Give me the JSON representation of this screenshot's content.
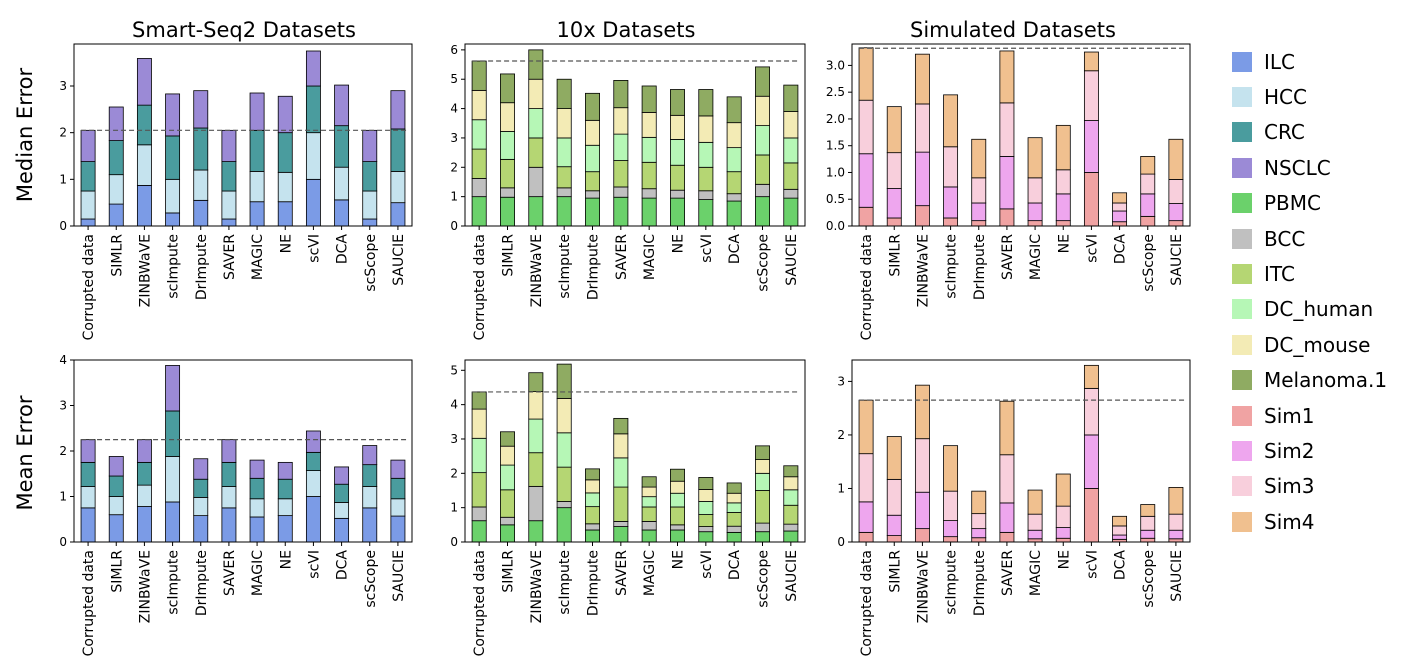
{
  "methods": [
    "Corrupted data",
    "SIMLR",
    "ZINBWaVE",
    "scImpute",
    "DrImpute",
    "SAVER",
    "MAGIC",
    "NE",
    "scVI",
    "DCA",
    "scScope",
    "SAUCIE"
  ],
  "row_labels": [
    "Median Error",
    "Mean Error"
  ],
  "col_titles": [
    "Smart-Seq2 Datasets",
    "10x Datasets",
    "Simulated Datasets"
  ],
  "legend": [
    {
      "name": "ILC",
      "color": "#7b9be6"
    },
    {
      "name": "HCC",
      "color": "#c5e3ee"
    },
    {
      "name": "CRC",
      "color": "#4a9c9e"
    },
    {
      "name": "NSCLC",
      "color": "#9b8ad6"
    },
    {
      "name": "PBMC",
      "color": "#6bd16b"
    },
    {
      "name": "BCC",
      "color": "#c0c0c0"
    },
    {
      "name": "ITC",
      "color": "#b5d673"
    },
    {
      "name": "DC_human",
      "color": "#b6f7b6"
    },
    {
      "name": "DC_mouse",
      "color": "#f3ebb5"
    },
    {
      "name": "Melanoma.1",
      "color": "#8fab62"
    },
    {
      "name": "Sim1",
      "color": "#f0a3a3"
    },
    {
      "name": "Sim2",
      "color": "#eea6ee"
    },
    {
      "name": "Sim3",
      "color": "#f8cfdc"
    },
    {
      "name": "Sim4",
      "color": "#f0c08f"
    }
  ],
  "chart_data": [
    {
      "type": "bar",
      "stacked": true,
      "title": "Smart-Seq2 Datasets",
      "ylabel": "Median Error",
      "ylim": [
        0,
        3.9
      ],
      "yticks": [
        0,
        1,
        2,
        3
      ],
      "reference_line": 2.05,
      "categories": [
        "Corrupted data",
        "SIMLR",
        "ZINBWaVE",
        "scImpute",
        "DrImpute",
        "SAVER",
        "MAGIC",
        "NE",
        "scVI",
        "DCA",
        "scScope",
        "SAUCIE"
      ],
      "series": [
        {
          "name": "ILC",
          "values": [
            0.15,
            0.47,
            0.87,
            0.28,
            0.55,
            0.15,
            0.52,
            0.52,
            1.0,
            0.56,
            0.15,
            0.5
          ]
        },
        {
          "name": "HCC",
          "values": [
            0.6,
            0.63,
            0.87,
            0.72,
            0.65,
            0.6,
            0.65,
            0.63,
            1.0,
            0.7,
            0.6,
            0.67
          ]
        },
        {
          "name": "CRC",
          "values": [
            0.63,
            0.73,
            0.85,
            0.93,
            0.9,
            0.63,
            0.88,
            0.85,
            1.0,
            0.89,
            0.63,
            0.91
          ]
        },
        {
          "name": "NSCLC",
          "values": [
            0.67,
            0.72,
            1.0,
            0.9,
            0.8,
            0.67,
            0.8,
            0.78,
            0.75,
            0.87,
            0.67,
            0.82
          ]
        }
      ]
    },
    {
      "type": "bar",
      "stacked": true,
      "title": "10x Datasets",
      "ylabel": "",
      "ylim": [
        0,
        6.2
      ],
      "yticks": [
        0,
        1,
        2,
        3,
        4,
        5,
        6
      ],
      "reference_line": 5.62,
      "categories": [
        "Corrupted data",
        "SIMLR",
        "ZINBWaVE",
        "scImpute",
        "DrImpute",
        "SAVER",
        "MAGIC",
        "NE",
        "scVI",
        "DCA",
        "scScope",
        "SAUCIE"
      ],
      "series": [
        {
          "name": "PBMC",
          "values": [
            1.0,
            0.98,
            1.0,
            1.0,
            0.95,
            0.98,
            0.95,
            0.95,
            0.9,
            0.85,
            1.0,
            0.95
          ]
        },
        {
          "name": "BCC",
          "values": [
            0.62,
            0.32,
            1.0,
            0.3,
            0.25,
            0.35,
            0.32,
            0.27,
            0.3,
            0.25,
            0.42,
            0.3
          ]
        },
        {
          "name": "ITC",
          "values": [
            1.0,
            0.97,
            1.0,
            0.72,
            0.65,
            0.9,
            0.9,
            0.85,
            0.8,
            0.75,
            1.0,
            0.9
          ]
        },
        {
          "name": "DC_human",
          "values": [
            1.0,
            0.95,
            1.0,
            0.98,
            0.9,
            0.9,
            0.85,
            0.88,
            0.85,
            0.82,
            1.0,
            0.85
          ]
        },
        {
          "name": "DC_mouse",
          "values": [
            1.0,
            0.98,
            1.0,
            1.0,
            0.85,
            0.9,
            0.85,
            0.82,
            0.9,
            0.85,
            1.0,
            0.9
          ]
        },
        {
          "name": "Melanoma.1",
          "values": [
            1.0,
            0.98,
            1.0,
            1.0,
            0.92,
            0.93,
            0.9,
            0.88,
            0.9,
            0.88,
            1.0,
            0.9
          ]
        }
      ]
    },
    {
      "type": "bar",
      "stacked": true,
      "title": "Simulated Datasets",
      "ylabel": "",
      "ylim": [
        0,
        3.4
      ],
      "yticks": [
        0.0,
        0.5,
        1.0,
        1.5,
        2.0,
        2.5,
        3.0
      ],
      "reference_line": 3.32,
      "categories": [
        "Corrupted data",
        "SIMLR",
        "ZINBWaVE",
        "scImpute",
        "DrImpute",
        "SAVER",
        "MAGIC",
        "NE",
        "scVI",
        "DCA",
        "scScope",
        "SAUCIE"
      ],
      "series": [
        {
          "name": "Sim1",
          "values": [
            0.35,
            0.15,
            0.38,
            0.15,
            0.1,
            0.32,
            0.1,
            0.1,
            1.0,
            0.08,
            0.18,
            0.1
          ]
        },
        {
          "name": "Sim2",
          "values": [
            1.0,
            0.55,
            1.0,
            0.58,
            0.33,
            0.98,
            0.33,
            0.5,
            0.97,
            0.2,
            0.42,
            0.32
          ]
        },
        {
          "name": "Sim3",
          "values": [
            1.0,
            0.67,
            0.9,
            0.75,
            0.47,
            1.0,
            0.47,
            0.45,
            0.93,
            0.15,
            0.37,
            0.45
          ]
        },
        {
          "name": "Sim4",
          "values": [
            0.98,
            0.86,
            0.93,
            0.97,
            0.72,
            0.97,
            0.75,
            0.83,
            0.35,
            0.19,
            0.33,
            0.75
          ]
        }
      ]
    },
    {
      "type": "bar",
      "stacked": true,
      "title": "",
      "ylabel": "Mean Error",
      "ylim": [
        0,
        4.0
      ],
      "yticks": [
        0,
        1,
        2,
        3,
        4
      ],
      "reference_line": 2.25,
      "categories": [
        "Corrupted data",
        "SIMLR",
        "ZINBWaVE",
        "scImpute",
        "DrImpute",
        "SAVER",
        "MAGIC",
        "NE",
        "scVI",
        "DCA",
        "scScope",
        "SAUCIE"
      ],
      "series": [
        {
          "name": "ILC",
          "values": [
            0.75,
            0.6,
            0.78,
            0.88,
            0.58,
            0.75,
            0.55,
            0.58,
            1.0,
            0.52,
            0.75,
            0.57
          ]
        },
        {
          "name": "HCC",
          "values": [
            0.47,
            0.4,
            0.47,
            1.0,
            0.4,
            0.47,
            0.4,
            0.37,
            0.57,
            0.35,
            0.47,
            0.38
          ]
        },
        {
          "name": "CRC",
          "values": [
            0.53,
            0.45,
            0.5,
            1.0,
            0.4,
            0.53,
            0.45,
            0.43,
            0.4,
            0.4,
            0.48,
            0.45
          ]
        },
        {
          "name": "NSCLC",
          "values": [
            0.5,
            0.43,
            0.5,
            1.0,
            0.45,
            0.5,
            0.4,
            0.37,
            0.47,
            0.38,
            0.42,
            0.4
          ]
        }
      ]
    },
    {
      "type": "bar",
      "stacked": true,
      "title": "",
      "ylabel": "",
      "ylim": [
        0,
        5.3
      ],
      "yticks": [
        0,
        1,
        2,
        3,
        4,
        5
      ],
      "reference_line": 4.37,
      "categories": [
        "Corrupted data",
        "SIMLR",
        "ZINBWaVE",
        "scImpute",
        "DrImpute",
        "SAVER",
        "MAGIC",
        "NE",
        "scVI",
        "DCA",
        "scScope",
        "SAUCIE"
      ],
      "series": [
        {
          "name": "PBMC",
          "values": [
            0.62,
            0.5,
            0.62,
            1.0,
            0.35,
            0.45,
            0.35,
            0.35,
            0.3,
            0.28,
            0.3,
            0.32
          ]
        },
        {
          "name": "BCC",
          "values": [
            0.4,
            0.22,
            1.0,
            0.18,
            0.18,
            0.15,
            0.25,
            0.15,
            0.15,
            0.18,
            0.25,
            0.2
          ]
        },
        {
          "name": "ITC",
          "values": [
            1.0,
            0.8,
            0.98,
            1.0,
            0.5,
            1.0,
            0.42,
            0.52,
            0.35,
            0.4,
            0.95,
            0.55
          ]
        },
        {
          "name": "DC_human",
          "values": [
            1.0,
            0.72,
            0.98,
            1.0,
            0.4,
            0.85,
            0.3,
            0.4,
            0.38,
            0.28,
            0.5,
            0.45
          ]
        },
        {
          "name": "DC_mouse",
          "values": [
            0.85,
            0.55,
            0.8,
            1.0,
            0.38,
            0.7,
            0.28,
            0.35,
            0.35,
            0.28,
            0.4,
            0.38
          ]
        },
        {
          "name": "Melanoma.1",
          "values": [
            0.5,
            0.42,
            0.55,
            1.0,
            0.32,
            0.45,
            0.3,
            0.35,
            0.35,
            0.3,
            0.4,
            0.32
          ]
        }
      ]
    },
    {
      "type": "bar",
      "stacked": true,
      "title": "",
      "ylabel": "",
      "ylim": [
        0,
        3.4
      ],
      "yticks": [
        0,
        1,
        2,
        3
      ],
      "reference_line": 2.65,
      "categories": [
        "Corrupted data",
        "SIMLR",
        "ZINBWaVE",
        "scImpute",
        "DrImpute",
        "SAVER",
        "MAGIC",
        "NE",
        "scVI",
        "DCA",
        "scScope",
        "SAUCIE"
      ],
      "series": [
        {
          "name": "Sim1",
          "values": [
            0.18,
            0.12,
            0.25,
            0.1,
            0.08,
            0.18,
            0.06,
            0.07,
            1.0,
            0.05,
            0.07,
            0.06
          ]
        },
        {
          "name": "Sim2",
          "values": [
            0.57,
            0.38,
            0.68,
            0.3,
            0.17,
            0.55,
            0.16,
            0.2,
            1.0,
            0.08,
            0.15,
            0.16
          ]
        },
        {
          "name": "Sim3",
          "values": [
            0.9,
            0.67,
            1.0,
            0.55,
            0.28,
            0.9,
            0.3,
            0.4,
            0.87,
            0.17,
            0.26,
            0.3
          ]
        },
        {
          "name": "Sim4",
          "values": [
            1.0,
            0.8,
            1.0,
            0.85,
            0.42,
            1.0,
            0.45,
            0.6,
            0.43,
            0.18,
            0.22,
            0.5
          ]
        }
      ]
    }
  ]
}
